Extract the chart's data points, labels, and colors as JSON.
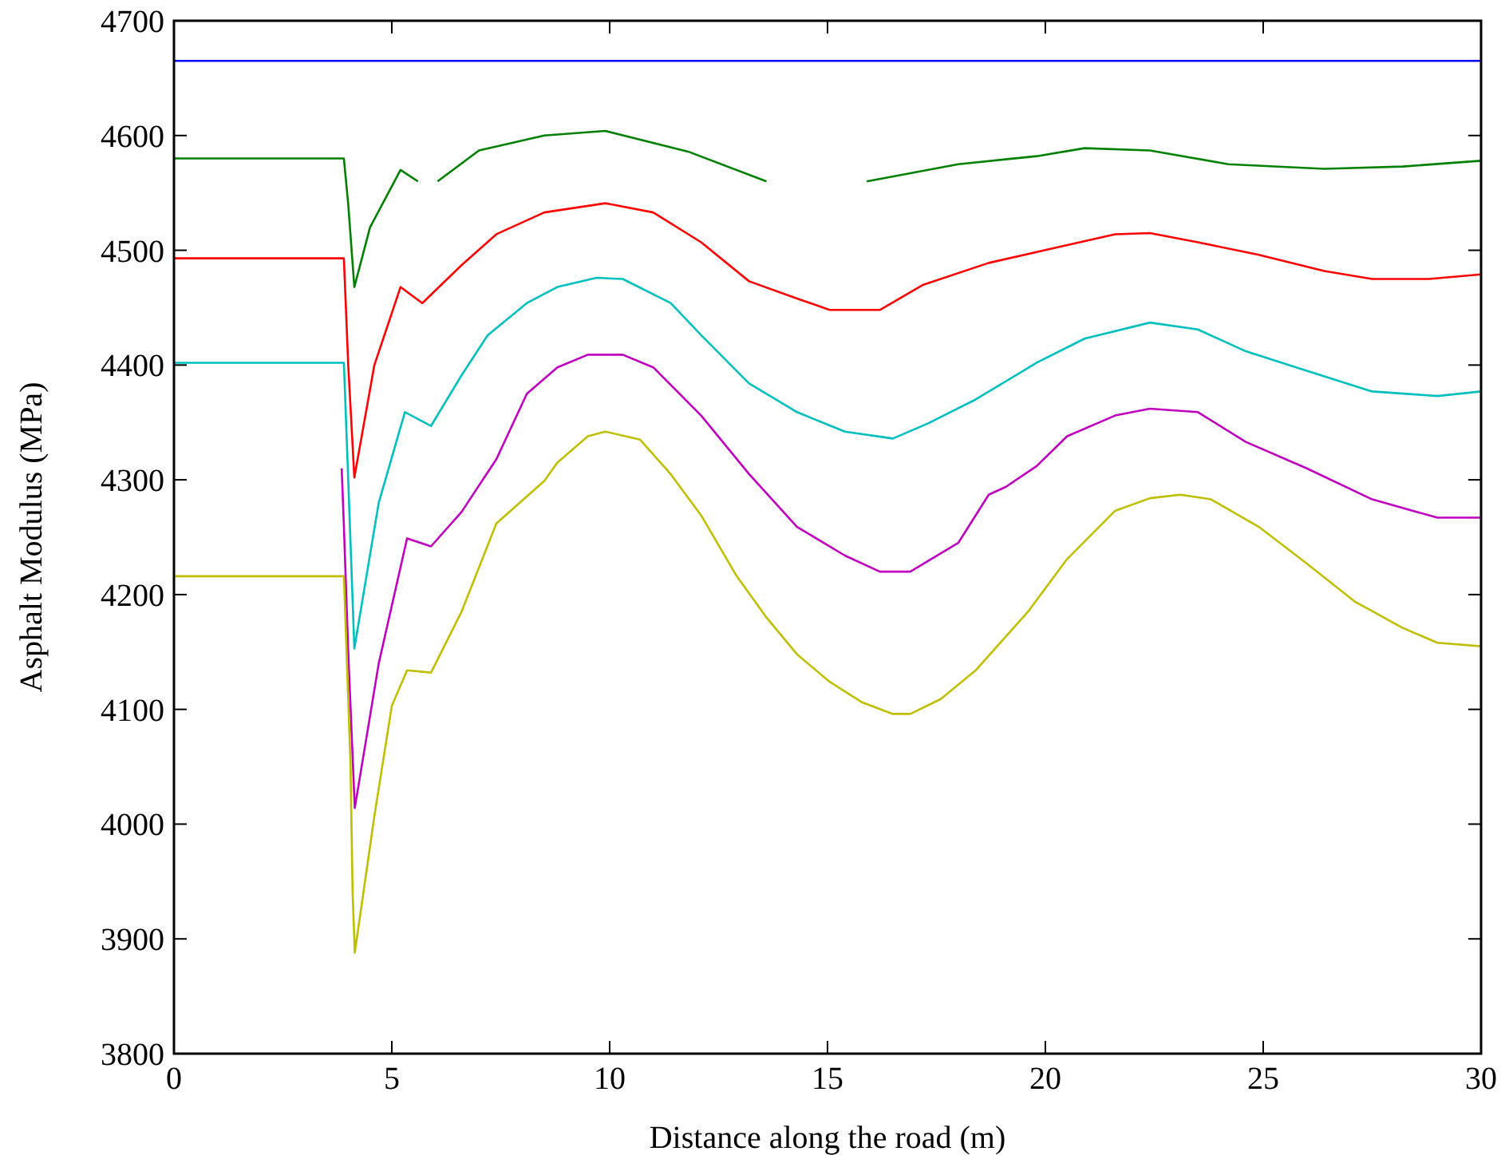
{
  "chart_data": {
    "type": "line",
    "xlabel": "Distance along the road (m)",
    "ylabel": "Asphalt Modulus (MPa)",
    "xlim": [
      0,
      30
    ],
    "ylim": [
      3800,
      4700
    ],
    "xticks": [
      0,
      5,
      10,
      15,
      20,
      25,
      30
    ],
    "yticks": [
      3800,
      3900,
      4000,
      4100,
      4200,
      4300,
      4400,
      4500,
      4600,
      4700
    ],
    "grid": false,
    "line_style": "solid",
    "marker": "none",
    "series": [
      {
        "color": "#0000ff",
        "x": [
          0,
          30
        ],
        "values": [
          4665,
          4665
        ]
      },
      {
        "color": "#008000",
        "x": [
          0,
          3.9,
          4.0,
          4.14,
          4.5,
          5.2,
          5.6,
          5.7,
          6.05,
          7,
          8.5,
          9.9,
          11.8,
          13.6,
          14.2,
          15.9,
          18,
          19.8,
          20.9,
          22.4,
          24.2,
          26.4,
          28.2,
          30
        ],
        "values": [
          4580,
          4580,
          4540,
          4468,
          4520,
          4570,
          4560,
          null,
          4560,
          4587,
          4600,
          4604,
          4586,
          4560,
          null,
          4560,
          4575,
          4582,
          4589,
          4587,
          4575,
          4571,
          4573,
          4578
        ]
      },
      {
        "color": "#ff0000",
        "x": [
          0,
          3.9,
          4.0,
          4.14,
          4.6,
          5.2,
          5.7,
          6.6,
          7.4,
          8.5,
          9.2,
          9.9,
          11,
          12.1,
          13.2,
          14.3,
          15.05,
          16.2,
          17.2,
          18.7,
          20.2,
          21.6,
          22.4,
          23.5,
          24.9,
          26.4,
          27.5,
          28.8,
          30
        ],
        "values": [
          4493,
          4493,
          4400,
          4302,
          4400,
          4468,
          4454,
          4487,
          4514,
          4533,
          4537,
          4541,
          4533,
          4507,
          4473,
          4458,
          4448,
          4448,
          4470,
          4489,
          4502,
          4514,
          4515,
          4507,
          4496,
          4482,
          4475,
          4475,
          4479
        ]
      },
      {
        "color": "#00bfbf",
        "x": [
          0,
          3.9,
          4.0,
          4.14,
          4.7,
          5.3,
          5.9,
          6.6,
          7.2,
          8.1,
          8.8,
          9.7,
          10.3,
          11.4,
          12.1,
          13.2,
          14.3,
          15.4,
          16.5,
          17.3,
          18.4,
          19.8,
          20.9,
          22.4,
          23.5,
          24.6,
          26,
          27.5,
          29,
          30
        ],
        "values": [
          4402,
          4402,
          4300,
          4153,
          4280,
          4359,
          4347,
          4391,
          4426,
          4454,
          4468,
          4476,
          4475,
          4454,
          4426,
          4384,
          4359,
          4342,
          4336,
          4349,
          4370,
          4402,
          4423,
          4437,
          4431,
          4412,
          4395,
          4377,
          4373,
          4377
        ]
      },
      {
        "color": "#bf00bf",
        "x": [
          3.85,
          3.9,
          4.0,
          4.15,
          4.7,
          5.35,
          5.9,
          6.6,
          7.4,
          8.1,
          8.8,
          9.5,
          10.3,
          11,
          12.1,
          13.2,
          14.3,
          15.4,
          16.2,
          16.9,
          18,
          18.7,
          19.1,
          19.8,
          20.5,
          21.6,
          22.4,
          23.5,
          24.6,
          26,
          27.5,
          29,
          30
        ],
        "values": [
          4310,
          4260,
          4150,
          4014,
          4140,
          4249,
          4242,
          4272,
          4318,
          4375,
          4398,
          4409,
          4409,
          4398,
          4356,
          4305,
          4259,
          4234,
          4220,
          4220,
          4245,
          4287,
          4294,
          4312,
          4338,
          4356,
          4362,
          4359,
          4333,
          4310,
          4283,
          4267,
          4267
        ]
      },
      {
        "color": "#bfbf00",
        "x": [
          0,
          3.9,
          3.95,
          4.05,
          4.1,
          4.15,
          4.6,
          5,
          5.35,
          5.9,
          6.6,
          7.4,
          8.5,
          8.8,
          9.5,
          9.9,
          10.7,
          11.4,
          12.1,
          12.9,
          13.6,
          14.3,
          15.05,
          15.8,
          16.5,
          16.9,
          17.6,
          18.4,
          19.6,
          20.5,
          21.6,
          22.4,
          23.1,
          23.8,
          24.9,
          26,
          27.1,
          28.2,
          29,
          30
        ],
        "values": [
          4216,
          4216,
          4163,
          4055,
          3941,
          3888,
          4007,
          4103,
          4134,
          4132,
          4185,
          4262,
          4299,
          4315,
          4338,
          4342,
          4335,
          4305,
          4269,
          4217,
          4180,
          4148,
          4124,
          4106,
          4096,
          4096,
          4109,
          4134,
          4185,
          4231,
          4273,
          4284,
          4287,
          4283,
          4259,
          4227,
          4194,
          4171,
          4158,
          4155
        ]
      }
    ]
  }
}
